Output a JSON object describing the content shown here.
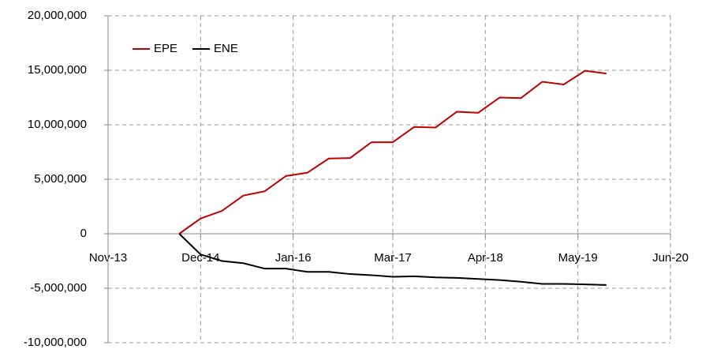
{
  "chart_data": {
    "type": "line",
    "x": [
      "2014-09",
      "2014-12",
      "2015-03",
      "2015-06",
      "2015-09",
      "2015-12",
      "2016-03",
      "2016-06",
      "2016-09",
      "2016-12",
      "2017-03",
      "2017-06",
      "2017-09",
      "2017-12",
      "2018-03",
      "2018-06",
      "2018-09",
      "2018-12",
      "2019-03",
      "2019-06",
      "2019-09"
    ],
    "series": [
      {
        "name": "EPE",
        "color": "#c00000",
        "values": [
          0,
          1400000,
          2100000,
          3500000,
          3900000,
          5300000,
          5600000,
          6900000,
          6950000,
          8400000,
          8400000,
          9800000,
          9750000,
          11200000,
          11100000,
          12500000,
          12450000,
          13950000,
          13700000,
          14950000,
          14700000
        ]
      },
      {
        "name": "ENE",
        "color": "#000000",
        "values": [
          0,
          -1900000,
          -2500000,
          -2700000,
          -3200000,
          -3200000,
          -3500000,
          -3500000,
          -3700000,
          -3800000,
          -3950000,
          -3900000,
          -4000000,
          -4050000,
          -4150000,
          -4250000,
          -4400000,
          -4600000,
          -4600000,
          -4650000,
          -4700000
        ]
      }
    ],
    "xlim": [
      "2013-11",
      "2020-06"
    ],
    "xticks": [
      {
        "value": "2013-11",
        "label": "Nov-13"
      },
      {
        "value": "2014-12",
        "label": "Dec-14"
      },
      {
        "value": "2016-01",
        "label": "Jan-16"
      },
      {
        "value": "2017-03",
        "label": "Mar-17"
      },
      {
        "value": "2018-04",
        "label": "Apr-18"
      },
      {
        "value": "2019-05",
        "label": "May-19"
      },
      {
        "value": "2020-06",
        "label": "Jun-20"
      }
    ],
    "ylim": [
      -10000000,
      20000000
    ],
    "yticks": [
      {
        "value": -10000000,
        "label": "-10,000,000"
      },
      {
        "value": -5000000,
        "label": "-5,000,000"
      },
      0,
      {
        "value": 5000000,
        "label": "5,000,000"
      },
      {
        "value": 10000000,
        "label": "10,000,000"
      },
      {
        "value": 15000000,
        "label": "15,000,000"
      },
      {
        "value": 20000000,
        "label": "20,000,000"
      }
    ],
    "grid": true,
    "legend": "top-left"
  }
}
